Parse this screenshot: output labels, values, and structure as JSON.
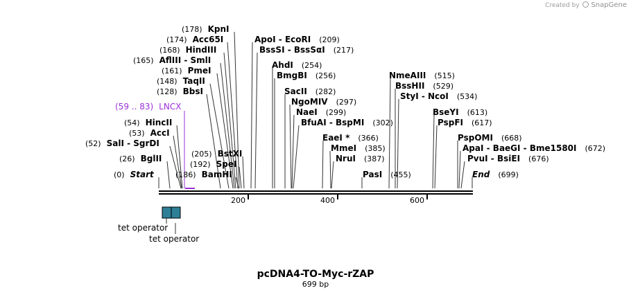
{
  "credit": {
    "created_by": "Created by",
    "brand": "SnapGene"
  },
  "map": {
    "title": "pcDNA4-TO-Myc-rZAP",
    "length": "699 bp",
    "ticks": [
      "200",
      "400",
      "600"
    ],
    "start": {
      "pos": "(0)",
      "label": "Start"
    },
    "end": {
      "pos": "(699)",
      "label": "End"
    },
    "sites": [
      {
        "pos": "(178)",
        "name": "KpnI"
      },
      {
        "pos": "(174)",
        "name": "Acc65I"
      },
      {
        "pos": "(168)",
        "name": "HindIII"
      },
      {
        "pos": "(165)",
        "name": "AflIII",
        "name2": "SmlI"
      },
      {
        "pos": "(161)",
        "name": "PmeI"
      },
      {
        "pos": "(148)",
        "name": "TaqII"
      },
      {
        "pos": "(128)",
        "name": "BbsI"
      },
      {
        "pos": "(54)",
        "name": "HincII"
      },
      {
        "pos": "(53)",
        "name": "AccI"
      },
      {
        "pos": "(52)",
        "name": "SalI",
        "name2": "SgrDI"
      },
      {
        "pos": "(26)",
        "name": "BglII"
      },
      {
        "pos": "(205)",
        "name": "BstXI"
      },
      {
        "pos": "(192)",
        "name": "SpeI"
      },
      {
        "pos": "(186)",
        "name": "BamHI"
      },
      {
        "pos": "(209)",
        "name": "ApoI",
        "name2": "EcoRI"
      },
      {
        "pos": "(217)",
        "name": "BssSI",
        "name2": "BssSαI"
      },
      {
        "pos": "(254)",
        "name": "AhdI"
      },
      {
        "pos": "(256)",
        "name": "BmgBI"
      },
      {
        "pos": "(282)",
        "name": "SacII"
      },
      {
        "pos": "(297)",
        "name": "NgoMIV"
      },
      {
        "pos": "(299)",
        "name": "NaeI"
      },
      {
        "pos": "(302)",
        "name": "BfuAI",
        "name2": "BspMI"
      },
      {
        "pos": "(366)",
        "name": "EaeI *"
      },
      {
        "pos": "(385)",
        "name": "MmeI"
      },
      {
        "pos": "(387)",
        "name": "NruI"
      },
      {
        "pos": "(455)",
        "name": "PasI"
      },
      {
        "pos": "(515)",
        "name": "NmeAIII"
      },
      {
        "pos": "(529)",
        "name": "BssHII"
      },
      {
        "pos": "(534)",
        "name": "StyI",
        "name2": "NcoI"
      },
      {
        "pos": "(613)",
        "name": "BseYI"
      },
      {
        "pos": "(617)",
        "name": "PspFI"
      },
      {
        "pos": "(668)",
        "name": "PspOMI"
      },
      {
        "pos": "(672)",
        "name": "ApaI",
        "name2": "BaeGI",
        "name3": "Bme1580I"
      },
      {
        "pos": "(676)",
        "name": "PvuI",
        "name2": "BsiEI"
      }
    ],
    "lncx": {
      "pos": "(59 .. 83)",
      "label": "LNCX",
      "color": "#9b30d9"
    },
    "features": [
      {
        "label": "tet operator",
        "color": "#2e7f96"
      },
      {
        "label": "tet operator",
        "color": "#2e7f96"
      }
    ]
  }
}
